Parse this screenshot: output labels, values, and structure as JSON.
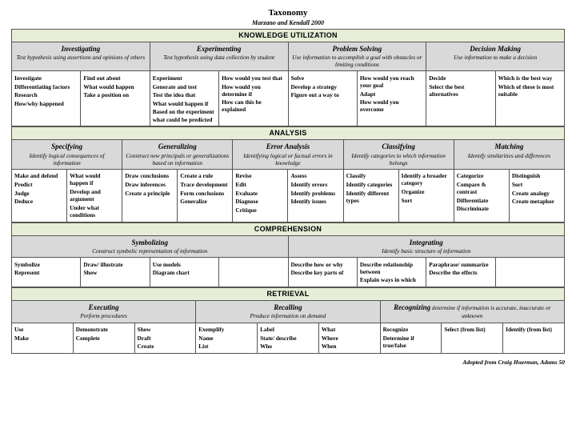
{
  "title": "Taxonomy",
  "subtitle": "Marzano and Kendall 2000",
  "attribution": "Adopted from  Craig Huerman, Adams 50",
  "sections": [
    {
      "band": "KNOWLEDGE UTILIZATION",
      "categories": [
        {
          "name": "Investigating",
          "desc": "Test hypothesis using assertions and opinions of others",
          "span": 2,
          "cols": [
            [
              "Investigate",
              "Differentiating factors",
              "Research",
              "How/why happened"
            ],
            [
              "Find out about",
              "What would happen",
              "Take a position on"
            ]
          ]
        },
        {
          "name": "Experimenting",
          "desc": "Test hypothesis using data collection by student",
          "span": 2,
          "cols": [
            [
              "Experiment",
              "Generate and test",
              "Test the idea that",
              "What would happen if",
              "Based on the experiment what could be predicted"
            ],
            [
              "How would you test that",
              "How would you determine if",
              "How can this be explained"
            ]
          ]
        },
        {
          "name": "Problem Solving",
          "desc": "Use information to accomplish a goal with obstacles or limiting conditions",
          "span": 2,
          "cols": [
            [
              "Solve",
              "Develop a strategy",
              "Figure out a way to"
            ],
            [
              "How would you reach your goal",
              "Adapt",
              "How would you overcome"
            ]
          ]
        },
        {
          "name": "Decision Making",
          "desc": "Use information to make a decision",
          "span": 2,
          "cols": [
            [
              "Decide",
              "Select the best alternatives"
            ],
            [
              "Which is the best way",
              "Which of these is most suitable"
            ]
          ]
        }
      ]
    },
    {
      "band": "ANALYSIS",
      "categories": [
        {
          "name": "Specifying",
          "desc": "Identify logical consequences of information",
          "span": 2,
          "cols": [
            [
              "Make and defend",
              "Predict",
              "Judge",
              "Deduce"
            ],
            [
              "What would happen if",
              "Develop and argument",
              "Under what conditions"
            ]
          ]
        },
        {
          "name": "Generalizing",
          "desc": "Construct new principals or generalizations based on information",
          "span": 2,
          "cols": [
            [
              "Draw conclusions",
              "Draw inferences",
              "Create a principle"
            ],
            [
              "Create a rule",
              "Trace development",
              "Form conclusions",
              "Generalize"
            ]
          ]
        },
        {
          "name": "Error Analysis",
          "desc": "Identifying logical or factual errors in knowledge",
          "span": 2,
          "cols": [
            [
              "Revise",
              "Edit",
              "Evaluate",
              "Diagnose",
              "Critique"
            ],
            [
              "Assess",
              "Identify errors",
              "Identify problems",
              "Identify issues"
            ]
          ]
        },
        {
          "name": "Classifying",
          "desc": "Identify categories to which information belongs",
          "span": 2,
          "cols": [
            [
              "Classify",
              "Identify categories",
              "Identify different types"
            ],
            [
              "Identify a broader category",
              "Organize",
              "Sort"
            ]
          ]
        },
        {
          "name": "Matching",
          "desc": "Identify similarities and differences",
          "span": 2,
          "cols": [
            [
              "Categorize",
              "Compare & contrast",
              "Differentiate",
              "Discriminate"
            ],
            [
              "Distinguish",
              "Sort",
              "Create analogy",
              "Create metaphor"
            ]
          ]
        }
      ]
    },
    {
      "band": "COMPREHENSION",
      "categories": [
        {
          "name": "Symbolizing",
          "desc": "Construct symbolic representation of information",
          "span": 4,
          "cols": [
            [
              "Symbolize",
              "Represent"
            ],
            [
              "Draw/ illustrate",
              "Show"
            ],
            [
              "Use models",
              "Diagram chart"
            ],
            []
          ]
        },
        {
          "name": "Integrating",
          "desc": "Identify basic structure of information",
          "span": 4,
          "cols": [
            [
              "Describe how or why",
              "Describe key parts of"
            ],
            [
              "Describe relationship between",
              "Explain ways in which"
            ],
            [
              "Paraphrase/ summarize",
              "Describe the effects"
            ],
            []
          ]
        }
      ]
    },
    {
      "band": "RETRIEVAL",
      "categories": [
        {
          "name": "Executing",
          "desc": "Perform procedures",
          "span": 3,
          "inline": false,
          "cols": [
            [
              "Use",
              "Make"
            ],
            [
              "Demonstrate",
              "Complete"
            ],
            [
              "Show",
              "Draft",
              "Create"
            ]
          ]
        },
        {
          "name": "Recalling",
          "desc": "Produce information on demand",
          "span": 3,
          "inline": false,
          "cols": [
            [
              "Exemplify",
              "Name",
              "List"
            ],
            [
              "Label",
              "State/ describe",
              "Who"
            ],
            [
              "What",
              "Where",
              "When"
            ]
          ]
        },
        {
          "name": "Recognizing",
          "desc": "determine if information is accurate, inaccurate or unknown",
          "span": 3,
          "inline": true,
          "cols": [
            [
              "Recognize",
              "Determine if true/false"
            ],
            [
              "Select (from list)"
            ],
            [
              "Identify (from list)"
            ]
          ]
        }
      ]
    }
  ]
}
